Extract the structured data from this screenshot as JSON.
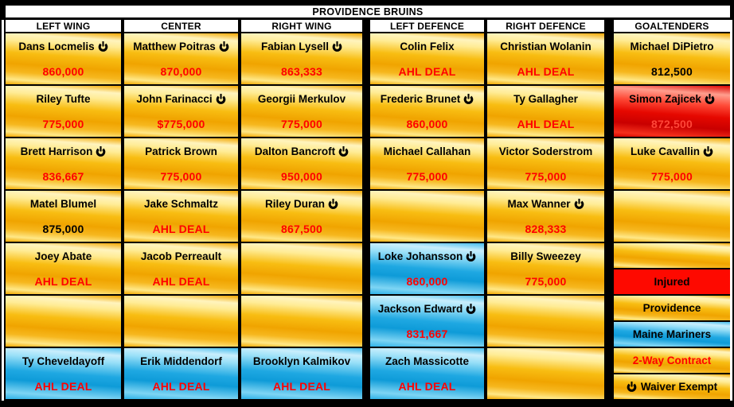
{
  "title": "PROVIDENCE BRUINS",
  "colors": {
    "gold_dark": "#F0A400",
    "gold_light": "#FFF3B8",
    "blue_dark": "#149FDC",
    "blue_light": "#C9EEFC",
    "red_cell": "#E60800",
    "injured_bg": "#FE0900",
    "value_red": "#FF0000",
    "value_red_on_red": "#FF4638",
    "header_bg": "#FFFFFF",
    "background": "#000000"
  },
  "icons": {
    "waiver_exempt": "power-icon"
  },
  "columns": [
    {
      "header": "LEFT WING",
      "cells": [
        {
          "name": "Dans Locmelis",
          "waiver_icon": true,
          "value": "860,000",
          "style": "gold",
          "value_style": "red"
        },
        {
          "name": "Riley Tufte",
          "waiver_icon": false,
          "value": "775,000",
          "style": "gold",
          "value_style": "red"
        },
        {
          "name": "Brett Harrison",
          "waiver_icon": true,
          "value": "836,667",
          "style": "gold",
          "value_style": "red"
        },
        {
          "name": "Matel Blumel",
          "waiver_icon": false,
          "value": "875,000",
          "style": "gold",
          "value_style": "black"
        },
        {
          "name": "Joey Abate",
          "waiver_icon": false,
          "value": "AHL DEAL",
          "style": "gold",
          "value_style": "red"
        },
        {
          "name": "",
          "waiver_icon": false,
          "value": "",
          "style": "gold",
          "value_style": "red"
        },
        {
          "name": "Ty Cheveldayoff",
          "waiver_icon": false,
          "value": "AHL DEAL",
          "style": "blue",
          "value_style": "red"
        }
      ]
    },
    {
      "header": "CENTER",
      "cells": [
        {
          "name": "Matthew Poitras",
          "waiver_icon": true,
          "value": "870,000",
          "style": "gold",
          "value_style": "red"
        },
        {
          "name": "John Farinacci",
          "waiver_icon": true,
          "value": "$775,000",
          "style": "gold",
          "value_style": "red"
        },
        {
          "name": "Patrick Brown",
          "waiver_icon": false,
          "value": "775,000",
          "style": "gold",
          "value_style": "red"
        },
        {
          "name": "Jake Schmaltz",
          "waiver_icon": false,
          "value": "AHL DEAL",
          "style": "gold",
          "value_style": "red"
        },
        {
          "name": "Jacob Perreault",
          "waiver_icon": false,
          "value": "AHL DEAL",
          "style": "gold",
          "value_style": "red"
        },
        {
          "name": "",
          "waiver_icon": false,
          "value": "",
          "style": "gold",
          "value_style": "red"
        },
        {
          "name": "Erik Middendorf",
          "waiver_icon": false,
          "value": "AHL DEAL",
          "style": "blue",
          "value_style": "red"
        }
      ]
    },
    {
      "header": "RIGHT WING",
      "cells": [
        {
          "name": "Fabian Lysell",
          "waiver_icon": true,
          "value": "863,333",
          "style": "gold",
          "value_style": "red"
        },
        {
          "name": "Georgii Merkulov",
          "waiver_icon": false,
          "value": "775,000",
          "style": "gold",
          "value_style": "red"
        },
        {
          "name": "Dalton Bancroft",
          "waiver_icon": true,
          "value": "950,000",
          "style": "gold",
          "value_style": "red"
        },
        {
          "name": "Riley Duran",
          "waiver_icon": true,
          "value": "867,500",
          "style": "gold",
          "value_style": "red"
        },
        {
          "name": "",
          "waiver_icon": false,
          "value": "",
          "style": "gold",
          "value_style": "red"
        },
        {
          "name": "",
          "waiver_icon": false,
          "value": "",
          "style": "gold",
          "value_style": "red"
        },
        {
          "name": "Brooklyn Kalmikov",
          "waiver_icon": false,
          "value": "AHL DEAL",
          "style": "blue",
          "value_style": "red"
        }
      ]
    },
    {
      "header": "LEFT DEFENCE",
      "cells": [
        {
          "name": "Colin Felix",
          "waiver_icon": false,
          "value": "AHL DEAL",
          "style": "gold",
          "value_style": "red"
        },
        {
          "name": "Frederic Brunet",
          "waiver_icon": true,
          "value": "860,000",
          "style": "gold",
          "value_style": "red"
        },
        {
          "name": "Michael Callahan",
          "waiver_icon": false,
          "value": "775,000",
          "style": "gold",
          "value_style": "red"
        },
        {
          "name": "",
          "waiver_icon": false,
          "value": "",
          "style": "gold",
          "value_style": "red"
        },
        {
          "name": "Loke Johansson",
          "waiver_icon": true,
          "value": "860,000",
          "style": "blue",
          "value_style": "red"
        },
        {
          "name": "Jackson Edward",
          "waiver_icon": true,
          "value": "831,667",
          "style": "blue",
          "value_style": "red"
        },
        {
          "name": "Zach Massicotte",
          "waiver_icon": false,
          "value": "AHL DEAL",
          "style": "blue",
          "value_style": "red"
        }
      ]
    },
    {
      "header": "RIGHT DEFENCE",
      "cells": [
        {
          "name": "Christian Wolanin",
          "waiver_icon": false,
          "value": "AHL DEAL",
          "style": "gold",
          "value_style": "red"
        },
        {
          "name": "Ty Gallagher",
          "waiver_icon": false,
          "value": "AHL DEAL",
          "style": "gold",
          "value_style": "red"
        },
        {
          "name": "Victor Soderstrom",
          "waiver_icon": false,
          "value": "775,000",
          "style": "gold",
          "value_style": "red"
        },
        {
          "name": "Max Wanner",
          "waiver_icon": true,
          "value": "828,333",
          "style": "gold",
          "value_style": "red"
        },
        {
          "name": "Billy Sweezey",
          "waiver_icon": false,
          "value": "775,000",
          "style": "gold",
          "value_style": "red"
        },
        {
          "name": "",
          "waiver_icon": false,
          "value": "",
          "style": "gold",
          "value_style": "red"
        },
        {
          "name": "",
          "waiver_icon": false,
          "value": "",
          "style": "gold",
          "value_style": "red"
        }
      ]
    },
    {
      "header": "GOALTENDERS",
      "cells": [
        {
          "name": "Michael DiPietro",
          "waiver_icon": false,
          "value": "812,500",
          "style": "gold",
          "value_style": "black"
        },
        {
          "name": "Simon Zajicek",
          "waiver_icon": true,
          "value": "872,500",
          "style": "red",
          "value_style": "redlight"
        },
        {
          "name": "Luke Cavallin",
          "waiver_icon": true,
          "value": "775,000",
          "style": "gold",
          "value_style": "red"
        },
        {
          "name": "",
          "waiver_icon": false,
          "value": "",
          "style": "gold",
          "value_style": "red"
        }
      ],
      "legend_cells": [
        {
          "label": "",
          "style": "gold",
          "text_style": "black",
          "waiver_icon": false
        },
        {
          "label": "Injured",
          "style": "red-solid",
          "text_style": "black",
          "waiver_icon": false
        },
        {
          "label": "Providence",
          "style": "gold",
          "text_style": "black",
          "waiver_icon": false
        },
        {
          "label": "Maine Mariners",
          "style": "blue",
          "text_style": "black",
          "waiver_icon": false
        },
        {
          "label": "2-Way Contract",
          "style": "gold",
          "text_style": "red",
          "waiver_icon": false
        },
        {
          "label": "Waiver Exempt",
          "style": "gold",
          "text_style": "black",
          "waiver_icon": true
        }
      ]
    }
  ]
}
